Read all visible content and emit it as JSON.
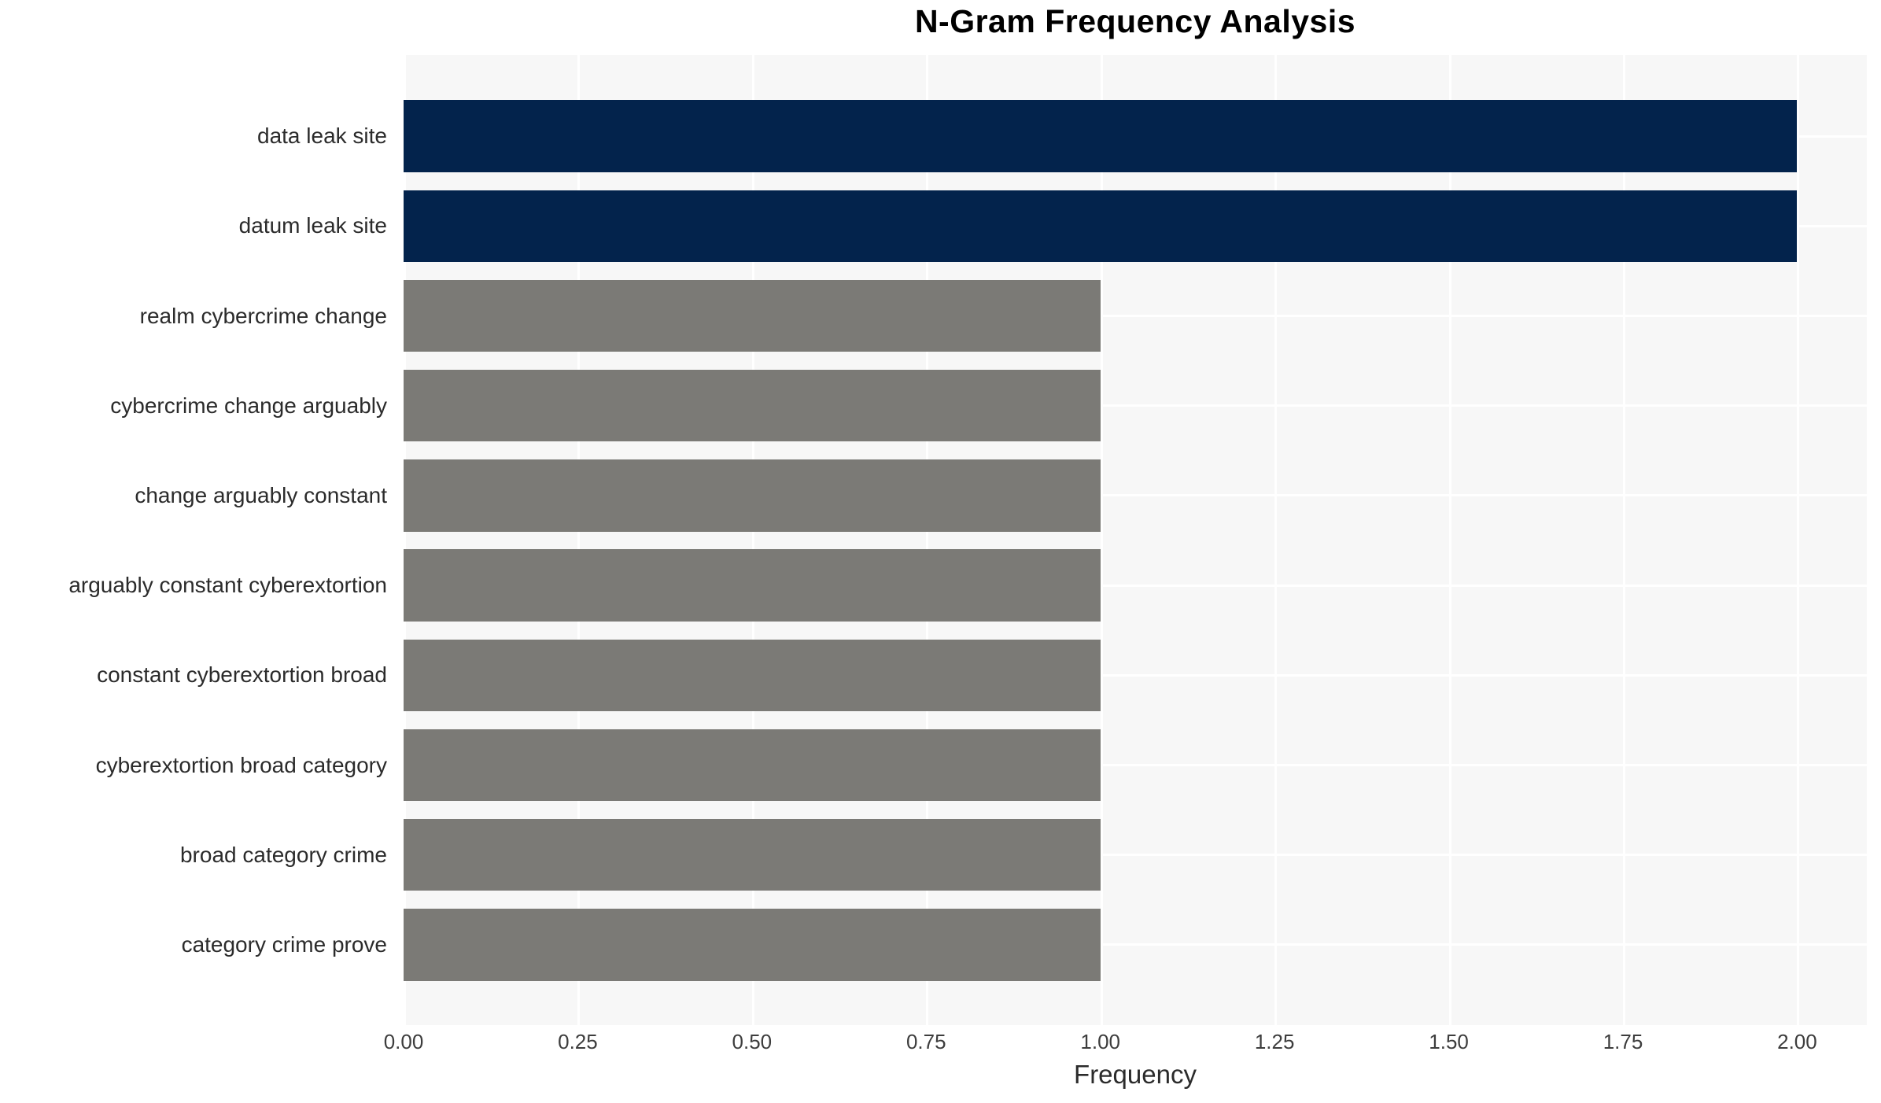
{
  "page": {
    "background": "#ffffff"
  },
  "chart_data": {
    "type": "bar",
    "orientation": "horizontal",
    "title": "N-Gram Frequency Analysis",
    "xlabel": "Frequency",
    "ylabel": "",
    "categories": [
      "data leak site",
      "datum leak site",
      "realm cybercrime change",
      "cybercrime change arguably",
      "change arguably constant",
      "arguably constant cyberextortion",
      "constant cyberextortion broad",
      "cyberextortion broad category",
      "broad category crime",
      "category crime prove"
    ],
    "values": [
      2,
      2,
      1,
      1,
      1,
      1,
      1,
      1,
      1,
      1
    ],
    "bar_colors": [
      "#03234c",
      "#03234c",
      "#7b7a76",
      "#7b7a76",
      "#7b7a76",
      "#7b7a76",
      "#7b7a76",
      "#7b7a76",
      "#7b7a76",
      "#7b7a76"
    ],
    "xlim": [
      0,
      2.1
    ],
    "xtick_values": [
      0,
      0.25,
      0.5,
      0.75,
      1.0,
      1.25,
      1.5,
      1.75,
      2.0
    ],
    "xtick_labels": [
      "0.00",
      "0.25",
      "0.50",
      "0.75",
      "1.00",
      "1.25",
      "1.50",
      "1.75",
      "2.00"
    ],
    "grid": true,
    "gridline_color": "#ffffff",
    "plot_background": "#f7f7f7",
    "legend": "none",
    "colors": {
      "high_frequency_bar": "#03234c",
      "low_frequency_bar": "#7b7a76",
      "title_text": "#000000",
      "category_label_text": "#2b2b2b",
      "tick_label_text": "#3d3d3d"
    }
  }
}
